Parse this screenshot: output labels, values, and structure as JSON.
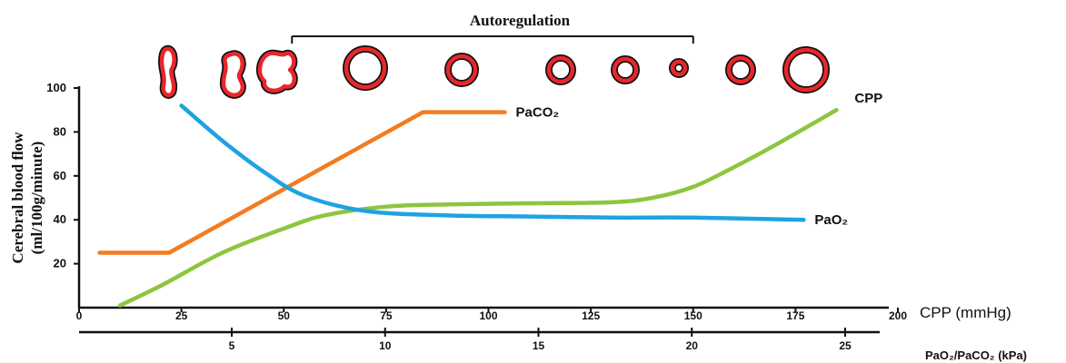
{
  "chart_data": {
    "type": "line",
    "title": "Autoregulation",
    "ylabel": [
      "Cerebral blood flow",
      "(ml/100g/minute)"
    ],
    "xlabel": "CPP (mmHg)",
    "x2label": "PaO₂/PaCO₂ (kPa)",
    "xlim": [
      0,
      200
    ],
    "ylim": [
      0,
      100
    ],
    "x_ticks": [
      0,
      25,
      50,
      75,
      100,
      125,
      150,
      175,
      200
    ],
    "y_ticks": [
      20,
      40,
      60,
      80,
      100
    ],
    "y_tick_labels": [
      "20",
      "40",
      "60",
      "80",
      "100"
    ],
    "x2_ticks": [
      5,
      10,
      15,
      20,
      25
    ],
    "autoregulation_range": [
      52,
      150
    ],
    "vessel_diameters": [
      "narrow",
      "narrow",
      "narrow",
      "wide",
      "medium",
      "small",
      "small",
      "tiny",
      "small",
      "wide"
    ],
    "series": [
      {
        "name": "CPP",
        "color": "#8cc63f",
        "x": [
          10,
          20,
          35,
          50,
          60,
          75,
          90,
          110,
          130,
          140,
          150,
          160,
          170,
          185
        ],
        "y": [
          1,
          10,
          25,
          36,
          42,
          46,
          47,
          47.5,
          48,
          50,
          55,
          64,
          74,
          90
        ]
      },
      {
        "name": "PaCO₂",
        "color": "#f47c20",
        "x": [
          5,
          22,
          84,
          104
        ],
        "y": [
          25,
          25,
          89,
          89
        ]
      },
      {
        "name": "PaO₂",
        "color": "#1ea3e1",
        "x": [
          25,
          35,
          45,
          55,
          70,
          90,
          110,
          130,
          150,
          177
        ],
        "y": [
          92,
          76,
          62,
          51,
          44,
          42,
          41.5,
          41,
          41,
          40
        ]
      }
    ]
  }
}
